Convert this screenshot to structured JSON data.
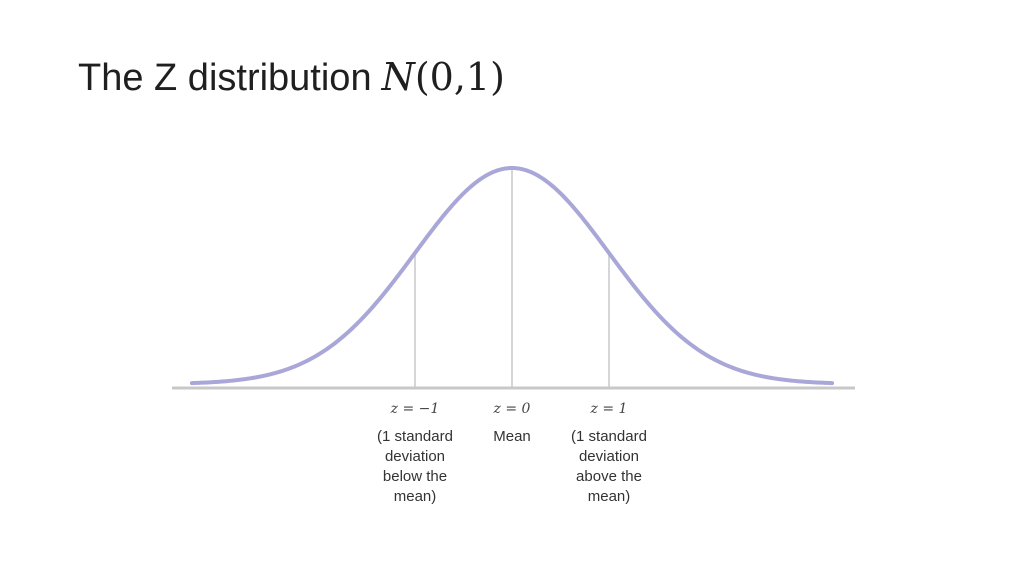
{
  "slide": {
    "title_text": "The Z distribution",
    "title_math_symbol": "N",
    "title_math_args": "(0,1)"
  },
  "chart_data": {
    "type": "line",
    "title": "",
    "xlabel": "",
    "ylabel": "",
    "xlim": [
      -3.3,
      3.3
    ],
    "grid": false,
    "curve_color": "#a9a7d8",
    "axis_color": "#c8c8c8",
    "marker_line_color": "#c8c8c8",
    "series": [
      {
        "function": "standard-normal-pdf",
        "mean": 0,
        "sd": 1
      }
    ],
    "markers": [
      {
        "z": -1,
        "label": "z = −1",
        "description": [
          "(1 standard",
          "deviation",
          "below the",
          "mean)"
        ]
      },
      {
        "z": 0,
        "label": "z = 0",
        "description": [
          "Mean"
        ]
      },
      {
        "z": 1,
        "label": "z = 1",
        "description": [
          "(1 standard",
          "deviation",
          "above the",
          "mean)"
        ]
      }
    ]
  }
}
